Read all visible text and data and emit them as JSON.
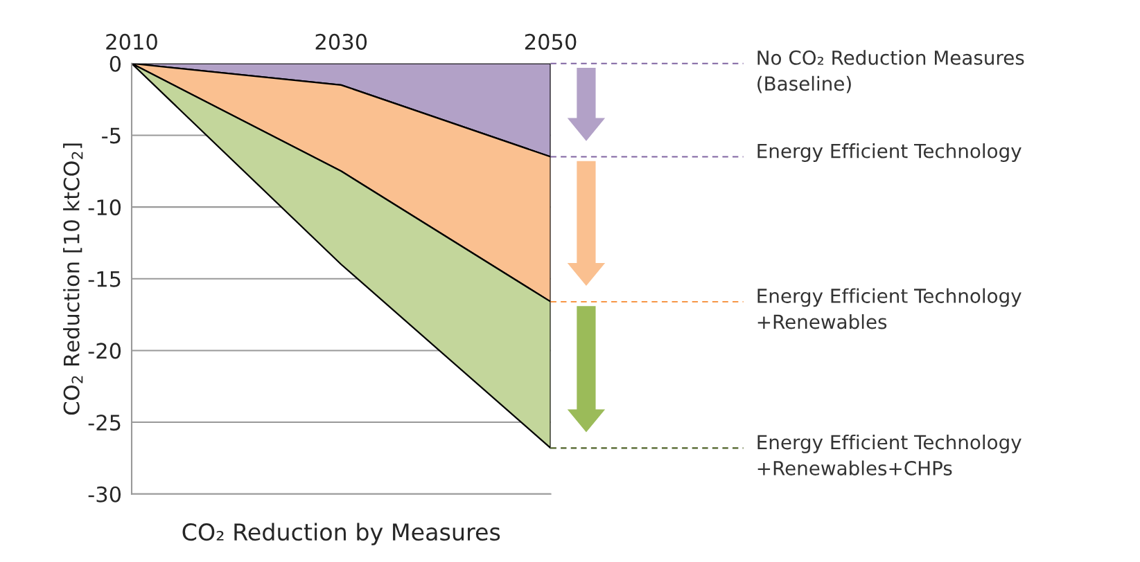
{
  "chart_data": {
    "type": "area",
    "stacked": true,
    "xlabel": "CO₂ Reduction by Measures",
    "ylabel": "CO$_{2}$ Reduction [10 ktCO$_{2}$]",
    "x": [
      2010,
      2030,
      2050
    ],
    "xlim": [
      2010,
      2050
    ],
    "xticks": [
      2010,
      2030,
      2050
    ],
    "ylim": [
      -30,
      0
    ],
    "yticks": [
      -30,
      -25,
      -20,
      -15,
      -10,
      -5,
      0
    ],
    "grid": "y",
    "series": [
      {
        "color": "#b2a1c7",
        "values": [
          0,
          -1.5,
          -6.5
        ]
      },
      {
        "color": "#fac090",
        "values": [
          0,
          -6.0,
          -10.1
        ]
      },
      {
        "color": "#c3d69b",
        "values": [
          0,
          -6.5,
          -10.2
        ]
      }
    ],
    "ref_lines": [
      {
        "axis": "y",
        "value": 0,
        "label": "No CO₂ Reduction Measures\n(Baseline)",
        "color": "#8064a2",
        "line_style": "dashed"
      },
      {
        "axis": "y",
        "value": -6.5,
        "label": "Energy Efficient Technology",
        "color": "#8064a2",
        "line_style": "dashed"
      },
      {
        "axis": "y",
        "value": -16.6,
        "label": "Energy Efficient Technology\n+Renewables",
        "color": "#f79646",
        "line_style": "dashed"
      },
      {
        "axis": "y",
        "value": -26.8,
        "label": "Energy Efficient Technology\n+Renewables+CHPs",
        "color": "#4f6228",
        "line_style": "dashed"
      }
    ]
  }
}
